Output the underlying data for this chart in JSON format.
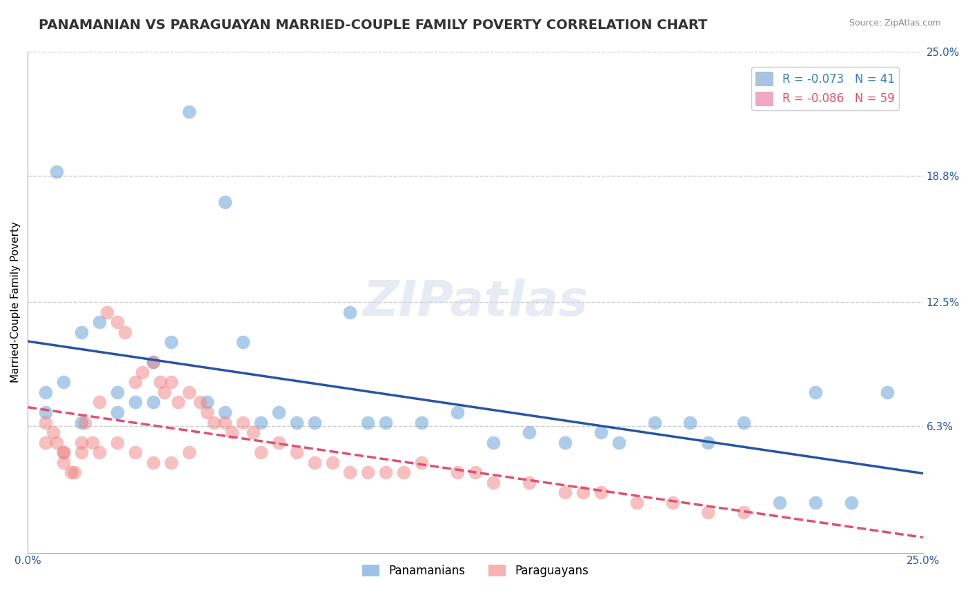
{
  "title": "PANAMANIAN VS PARAGUAYAN MARRIED-COUPLE FAMILY POVERTY CORRELATION CHART",
  "source_text": "Source: ZipAtlas.com",
  "xlabel": "",
  "ylabel": "Married-Couple Family Poverty",
  "xlim": [
    0.0,
    0.25
  ],
  "ylim": [
    0.0,
    0.25
  ],
  "xtick_labels": [
    "0.0%",
    "25.0%"
  ],
  "xtick_positions": [
    0.0,
    0.25
  ],
  "ytick_labels": [
    "6.3%",
    "12.5%",
    "18.8%",
    "25.0%"
  ],
  "ytick_positions": [
    0.063,
    0.125,
    0.188,
    0.25
  ],
  "legend_entries": [
    {
      "label": "R = -0.073   N = 41",
      "color": "#a8c4e0"
    },
    {
      "label": "R = -0.086   N = 59",
      "color": "#f4a8c0"
    }
  ],
  "legend_labels_bottom": [
    "Panamanians",
    "Paraguayans"
  ],
  "blue_color": "#5b9bd5",
  "pink_color": "#f08080",
  "blue_line_color": "#2855a0",
  "pink_line_color": "#e05070",
  "watermark_text": "ZIPatlas",
  "title_fontsize": 14,
  "axis_label_fontsize": 11,
  "tick_fontsize": 11,
  "blue_r": -0.073,
  "blue_n": 41,
  "pink_r": -0.086,
  "pink_n": 59,
  "panama_x": [
    0.008,
    0.045,
    0.055,
    0.02,
    0.015,
    0.01,
    0.005,
    0.025,
    0.03,
    0.035,
    0.04,
    0.05,
    0.06,
    0.065,
    0.07,
    0.08,
    0.09,
    0.1,
    0.11,
    0.12,
    0.13,
    0.14,
    0.15,
    0.16,
    0.165,
    0.175,
    0.185,
    0.19,
    0.2,
    0.21,
    0.22,
    0.23,
    0.24,
    0.005,
    0.015,
    0.025,
    0.035,
    0.055,
    0.075,
    0.095,
    0.22
  ],
  "panama_y": [
    0.19,
    0.22,
    0.175,
    0.115,
    0.11,
    0.085,
    0.08,
    0.08,
    0.075,
    0.095,
    0.105,
    0.075,
    0.105,
    0.065,
    0.07,
    0.065,
    0.12,
    0.065,
    0.065,
    0.07,
    0.055,
    0.06,
    0.055,
    0.06,
    0.055,
    0.065,
    0.065,
    0.055,
    0.065,
    0.025,
    0.025,
    0.025,
    0.08,
    0.07,
    0.065,
    0.07,
    0.075,
    0.07,
    0.065,
    0.065,
    0.08
  ],
  "paraguay_x": [
    0.005,
    0.007,
    0.008,
    0.01,
    0.01,
    0.012,
    0.013,
    0.015,
    0.016,
    0.018,
    0.02,
    0.022,
    0.025,
    0.027,
    0.03,
    0.032,
    0.035,
    0.037,
    0.038,
    0.04,
    0.042,
    0.045,
    0.048,
    0.05,
    0.052,
    0.055,
    0.057,
    0.06,
    0.063,
    0.065,
    0.07,
    0.075,
    0.08,
    0.085,
    0.09,
    0.095,
    0.1,
    0.105,
    0.11,
    0.12,
    0.125,
    0.13,
    0.14,
    0.15,
    0.155,
    0.16,
    0.17,
    0.18,
    0.19,
    0.2,
    0.005,
    0.01,
    0.015,
    0.02,
    0.025,
    0.03,
    0.035,
    0.04,
    0.045
  ],
  "paraguay_y": [
    0.065,
    0.06,
    0.055,
    0.05,
    0.045,
    0.04,
    0.04,
    0.05,
    0.065,
    0.055,
    0.075,
    0.12,
    0.115,
    0.11,
    0.085,
    0.09,
    0.095,
    0.085,
    0.08,
    0.085,
    0.075,
    0.08,
    0.075,
    0.07,
    0.065,
    0.065,
    0.06,
    0.065,
    0.06,
    0.05,
    0.055,
    0.05,
    0.045,
    0.045,
    0.04,
    0.04,
    0.04,
    0.04,
    0.045,
    0.04,
    0.04,
    0.035,
    0.035,
    0.03,
    0.03,
    0.03,
    0.025,
    0.025,
    0.02,
    0.02,
    0.055,
    0.05,
    0.055,
    0.05,
    0.055,
    0.05,
    0.045,
    0.045,
    0.05
  ],
  "grid_color": "#cccccc",
  "background_color": "#ffffff"
}
